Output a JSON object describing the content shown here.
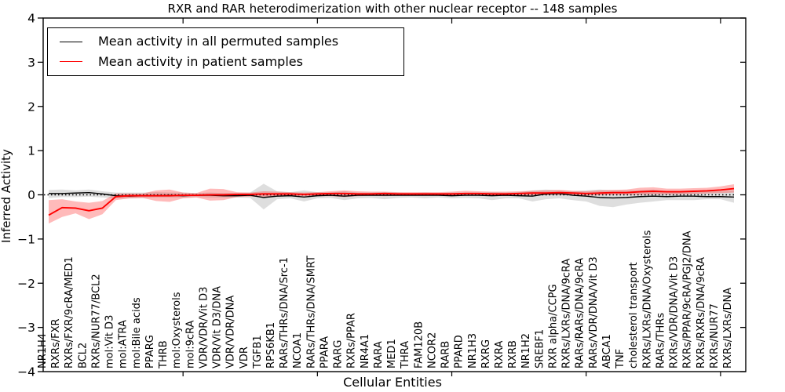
{
  "chart_data": {
    "type": "line",
    "title": "RXR and RAR heterodimerization with other nuclear receptor -- 148 samples",
    "xlabel": "Cellular Entities",
    "ylabel": "Inferred Activity",
    "ylim": [
      -4,
      4
    ],
    "yticks": [
      4,
      3,
      2,
      1,
      0,
      -1,
      -2,
      -3,
      -4
    ],
    "xtick_major_indices": [
      10,
      20,
      30,
      40,
      50
    ],
    "grid": false,
    "legend_position": "upper left",
    "zero_line": {
      "y": 0,
      "style": "dotted",
      "color": "#000000"
    },
    "categories": [
      "NR1H4",
      "RXRs/FXR",
      "RXRs/FXR/9cRA/MED1",
      "BCL2",
      "RXRs/NUR77/BCL2",
      "mol:Vit D3",
      "mol:ATRA",
      "mol:Bile acids",
      "PPARG",
      "THRB",
      "mol:Oxysterols",
      "mol:9cRA",
      "VDR/VDR/Vit D3",
      "VDR/Vit D3/DNA",
      "VDR/VDR/DNA",
      "VDR",
      "TGFB1",
      "RPS6KB1",
      "RARs/THRs/DNA/Src-1",
      "NCOA1",
      "RARs/THRs/DNA/SMRT",
      "PPARA",
      "RARG",
      "RXRs/PPAR",
      "NR4A1",
      "RARA",
      "MED1",
      "THRA",
      "FAM120B",
      "NCOR2",
      "RARB",
      "PPARD",
      "NR1H3",
      "RXRG",
      "RXRA",
      "RXRB",
      "NR1H2",
      "SREBF1",
      "RXR alpha/CCPG",
      "RXRs/LXRs/DNA/9cRA",
      "RARs/RARs/DNA/9cRA",
      "RARs/VDR/DNA/Vit D3",
      "ABCA1",
      "TNF",
      "cholesterol transport",
      "RXRs/LXRs/DNA/Oxysterols",
      "RARs/THRs",
      "RXRs/VDR/DNA/Vit D3",
      "RXRs/PPAR/9cRA/PGJ2/DNA",
      "RXRs/RXRs/DNA/9cRA",
      "RXRs/NUR77",
      "RXRs/LXRs/DNA"
    ],
    "series": [
      {
        "name": "Mean activity in all permuted samples",
        "color": "#000000",
        "linewidth": 1.4,
        "band_color": "#000000",
        "band_alpha": 0.13,
        "values": [
          0.03,
          0.03,
          0.04,
          0.05,
          0.02,
          -0.02,
          -0.03,
          -0.02,
          -0.02,
          -0.01,
          -0.02,
          -0.01,
          -0.01,
          -0.02,
          -0.02,
          -0.01,
          -0.06,
          -0.03,
          -0.02,
          -0.05,
          -0.02,
          -0.01,
          -0.03,
          -0.01,
          -0.01,
          -0.01,
          -0.01,
          -0.01,
          -0.01,
          -0.01,
          -0.02,
          -0.01,
          -0.01,
          -0.02,
          -0.01,
          -0.02,
          -0.03,
          0.02,
          0.03,
          -0.01,
          -0.03,
          -0.06,
          -0.07,
          -0.06,
          -0.04,
          -0.03,
          -0.04,
          -0.03,
          -0.03,
          -0.04,
          -0.04,
          -0.05
        ],
        "band_upper": [
          0.11,
          0.12,
          0.1,
          0.12,
          0.08,
          0.05,
          0.05,
          0.05,
          0.06,
          0.05,
          0.05,
          0.04,
          0.05,
          0.04,
          0.04,
          0.05,
          0.25,
          0.08,
          0.06,
          0.1,
          0.06,
          0.05,
          0.08,
          0.05,
          0.05,
          0.06,
          0.05,
          0.04,
          0.05,
          0.04,
          0.05,
          0.05,
          0.05,
          0.06,
          0.05,
          0.06,
          0.1,
          0.12,
          0.1,
          0.08,
          0.1,
          0.12,
          0.1,
          0.1,
          0.1,
          0.12,
          0.08,
          0.08,
          0.08,
          0.08,
          0.08,
          0.1
        ],
        "band_lower": [
          -0.07,
          -0.05,
          -0.05,
          -0.04,
          -0.06,
          -0.08,
          -0.08,
          -0.07,
          -0.06,
          -0.06,
          -0.06,
          -0.05,
          -0.06,
          -0.06,
          -0.06,
          -0.07,
          -0.33,
          -0.1,
          -0.08,
          -0.15,
          -0.08,
          -0.07,
          -0.12,
          -0.08,
          -0.07,
          -0.1,
          -0.07,
          -0.06,
          -0.08,
          -0.06,
          -0.08,
          -0.07,
          -0.08,
          -0.12,
          -0.08,
          -0.08,
          -0.15,
          -0.1,
          -0.08,
          -0.12,
          -0.15,
          -0.25,
          -0.28,
          -0.22,
          -0.18,
          -0.15,
          -0.12,
          -0.12,
          -0.12,
          -0.1,
          -0.1,
          -0.18
        ]
      },
      {
        "name": "Mean activity in patient samples",
        "color": "#ff0000",
        "linewidth": 1.9,
        "band_color": "#ff0000",
        "band_alpha": 0.27,
        "values": [
          -0.46,
          -0.29,
          -0.3,
          -0.36,
          -0.3,
          -0.04,
          -0.02,
          -0.02,
          -0.02,
          -0.02,
          -0.01,
          -0.01,
          0.0,
          0.0,
          0.01,
          0.01,
          0.02,
          0.02,
          0.02,
          0.01,
          0.02,
          0.03,
          0.03,
          0.02,
          0.02,
          0.03,
          0.02,
          0.02,
          0.02,
          0.02,
          0.02,
          0.03,
          0.03,
          0.02,
          0.02,
          0.03,
          0.04,
          0.04,
          0.05,
          0.04,
          0.03,
          0.04,
          0.05,
          0.05,
          0.07,
          0.08,
          0.07,
          0.07,
          0.08,
          0.09,
          0.11,
          0.14
        ],
        "band_upper": [
          -0.12,
          -0.1,
          -0.15,
          -0.18,
          -0.14,
          0.03,
          0.03,
          0.03,
          0.1,
          0.12,
          0.05,
          0.04,
          0.14,
          0.13,
          0.06,
          0.05,
          0.08,
          0.07,
          0.06,
          0.05,
          0.06,
          0.08,
          0.1,
          0.08,
          0.07,
          0.07,
          0.06,
          0.06,
          0.06,
          0.06,
          0.07,
          0.09,
          0.08,
          0.07,
          0.07,
          0.08,
          0.09,
          0.1,
          0.11,
          0.09,
          0.08,
          0.1,
          0.11,
          0.12,
          0.16,
          0.17,
          0.14,
          0.14,
          0.15,
          0.16,
          0.19,
          0.24
        ],
        "band_lower": [
          -0.65,
          -0.5,
          -0.42,
          -0.55,
          -0.44,
          -0.12,
          -0.08,
          -0.07,
          -0.14,
          -0.16,
          -0.08,
          -0.06,
          -0.13,
          -0.12,
          -0.05,
          -0.04,
          -0.05,
          -0.04,
          -0.03,
          -0.03,
          -0.03,
          -0.03,
          -0.05,
          -0.03,
          -0.02,
          -0.03,
          -0.02,
          -0.02,
          -0.02,
          -0.02,
          -0.02,
          -0.02,
          -0.02,
          -0.02,
          -0.02,
          -0.02,
          -0.01,
          0.0,
          0.0,
          -0.01,
          -0.02,
          -0.01,
          0.0,
          0.0,
          0.0,
          0.01,
          0.01,
          0.01,
          0.02,
          0.03,
          0.04,
          0.05
        ]
      }
    ]
  }
}
